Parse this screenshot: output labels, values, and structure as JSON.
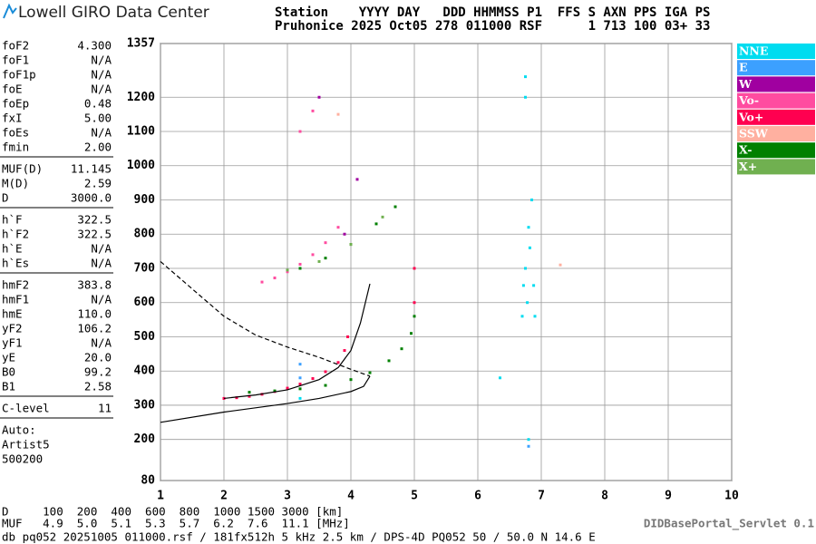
{
  "header": {
    "logo": "Lowell GIRO Data Center",
    "line1": "Station    YYYY DAY   DDD HHMMSS P1  FFS S AXN PPS IGA PS",
    "line2": "Pruhonice 2025 Oct05 278 011000 RSF      1 713 100 03+ 33"
  },
  "parameters": [
    [
      [
        "foF2",
        "4.300"
      ],
      [
        "foF1",
        "N/A"
      ],
      [
        "foF1p",
        "N/A"
      ],
      [
        "foE",
        "N/A"
      ],
      [
        "foEp",
        "0.48"
      ],
      [
        "fxI",
        "5.00"
      ],
      [
        "foEs",
        "N/A"
      ],
      [
        "fmin",
        "2.00"
      ]
    ],
    [
      [
        "MUF(D)",
        "11.145"
      ],
      [
        "M(D)",
        "2.59"
      ],
      [
        "D",
        "3000.0"
      ]
    ],
    [
      [
        "h`F",
        "322.5"
      ],
      [
        "h`F2",
        "322.5"
      ],
      [
        "h`E",
        "N/A"
      ],
      [
        "h`Es",
        "N/A"
      ]
    ],
    [
      [
        "hmF2",
        "383.8"
      ],
      [
        "hmF1",
        "N/A"
      ],
      [
        "hmE",
        "110.0"
      ],
      [
        "yF2",
        "106.2"
      ],
      [
        "yF1",
        "N/A"
      ],
      [
        "yE",
        "20.0"
      ],
      [
        "B0",
        "99.2"
      ],
      [
        "B1",
        "2.58"
      ]
    ],
    [
      [
        "C-level",
        "11"
      ]
    ]
  ],
  "notes": [
    "Auto:",
    "Artist5",
    "500200"
  ],
  "chart_data": {
    "type": "scatter",
    "xlim": [
      1,
      10
    ],
    "ylim": [
      80,
      1357
    ],
    "xticks": [
      1,
      2,
      3,
      4,
      5,
      6,
      7,
      8,
      9,
      10
    ],
    "yticks": [
      80,
      200,
      300,
      400,
      500,
      600,
      700,
      800,
      900,
      1000,
      1100,
      1200,
      1357
    ],
    "grid": true,
    "series": [
      {
        "name": "NNE",
        "color": "#00dcf0",
        "x": [
          6.7,
          6.72,
          6.75,
          6.78,
          6.8,
          6.82,
          6.85,
          6.88,
          6.9,
          6.75,
          6.75,
          3.2,
          6.35,
          6.8
        ],
        "y": [
          560,
          650,
          700,
          600,
          820,
          760,
          900,
          650,
          560,
          1200,
          1260,
          320,
          380,
          200
        ]
      },
      {
        "name": "E",
        "color": "#3ca0ff",
        "x": [
          3.2,
          3.2,
          6.8
        ],
        "y": [
          420,
          380,
          180
        ]
      },
      {
        "name": "W",
        "color": "#a000a0",
        "x": [
          3.5,
          3.9,
          4.1
        ],
        "y": [
          1200,
          800,
          960
        ]
      },
      {
        "name": "Vo-",
        "color": "#ff4ca0",
        "x": [
          2.6,
          2.8,
          3.0,
          3.2,
          3.4,
          3.6,
          3.8,
          3.2,
          3.4
        ],
        "y": [
          660,
          672,
          690,
          712,
          740,
          775,
          820,
          1100,
          1160
        ]
      },
      {
        "name": "Vo+",
        "color": "#ff0050",
        "x": [
          2.0,
          2.2,
          2.4,
          2.6,
          2.8,
          3.0,
          3.2,
          3.4,
          3.6,
          3.8,
          3.9,
          3.95,
          5.0,
          5.0
        ],
        "y": [
          320,
          322,
          326,
          332,
          340,
          350,
          362,
          378,
          398,
          425,
          460,
          500,
          600,
          700
        ]
      },
      {
        "name": "SSW",
        "color": "#ffb0a0",
        "x": [
          3.8,
          7.3
        ],
        "y": [
          1150,
          710
        ]
      },
      {
        "name": "X-",
        "color": "#008000",
        "x": [
          2.4,
          2.8,
          3.2,
          3.6,
          4.0,
          4.3,
          4.6,
          4.8,
          4.95,
          5.0,
          3.2,
          3.6,
          4.0,
          4.4,
          4.7
        ],
        "y": [
          338,
          342,
          348,
          358,
          375,
          395,
          430,
          465,
          510,
          560,
          700,
          730,
          770,
          830,
          880
        ]
      },
      {
        "name": "X+",
        "color": "#70b050",
        "x": [
          3.0,
          3.5,
          4.0,
          4.5
        ],
        "y": [
          695,
          720,
          770,
          850
        ]
      }
    ],
    "lines": [
      {
        "dash": true,
        "x": [
          1.0,
          1.5,
          2.0,
          2.5,
          3.0,
          3.5,
          4.0,
          4.3
        ],
        "y": [
          720,
          640,
          560,
          505,
          470,
          440,
          405,
          385
        ]
      },
      {
        "dash": false,
        "x": [
          1.0,
          2.0,
          3.0,
          3.5,
          4.0,
          4.2,
          4.3
        ],
        "y": [
          250,
          280,
          305,
          320,
          340,
          355,
          385
        ]
      },
      {
        "dash": false,
        "x": [
          2.0,
          2.5,
          3.0,
          3.5,
          3.8,
          4.0,
          4.15,
          4.3
        ],
        "y": [
          320,
          330,
          345,
          375,
          410,
          460,
          540,
          655
        ]
      }
    ]
  },
  "footer": {
    "distance": "D     100  200  400  600  800  1000 1500 3000 [km]",
    "muf": "MUF   4.9  5.0  5.1  5.3  5.7  6.2  7.6  11.1 [MHz]",
    "info": "db pq052 20251005 011000.rsf / 181fx512h 5 kHz 2.5 km / DPS-4D PQ052 50 / 50.0 N 14.6 E",
    "servlet": "DIDBasePortal_Servlet 0.1"
  }
}
